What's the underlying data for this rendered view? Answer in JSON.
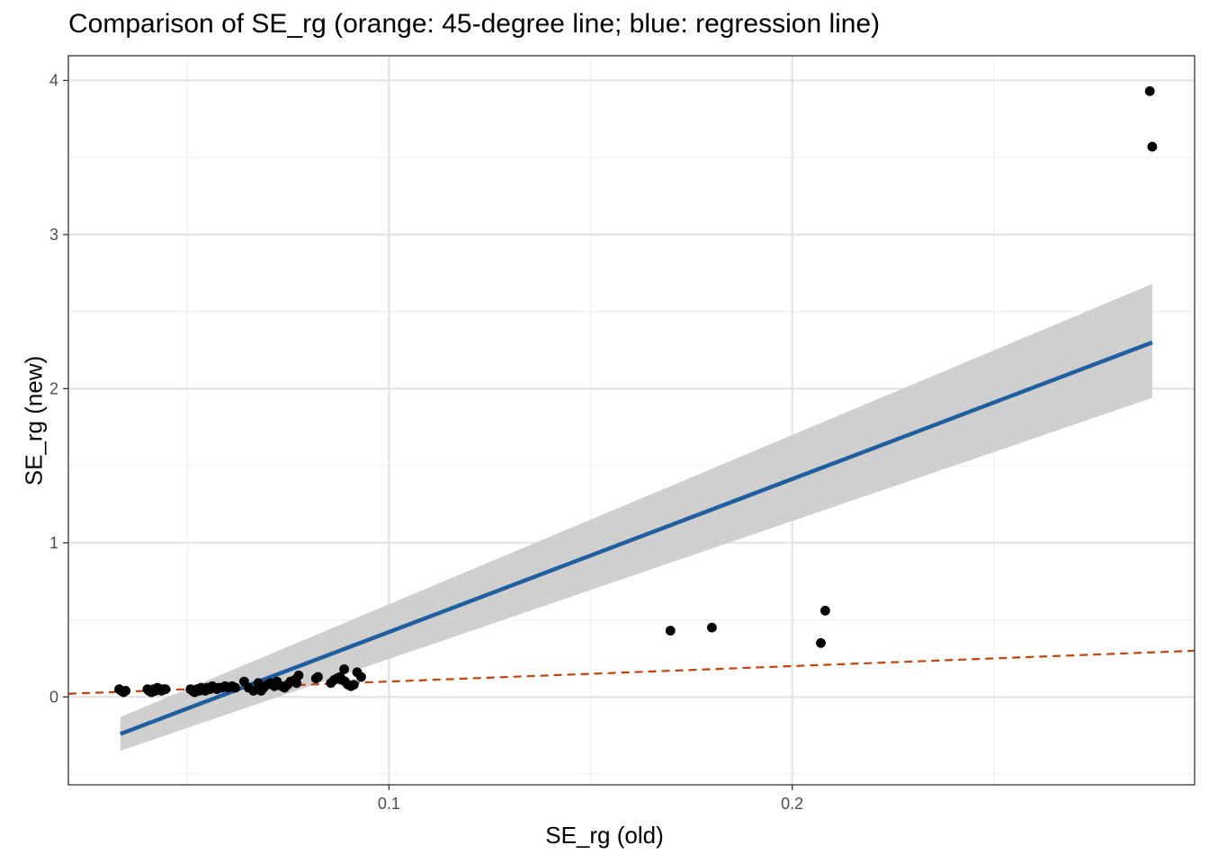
{
  "chart_data": {
    "type": "scatter",
    "title": "Comparison of SE_rg (orange: 45-degree line; blue: regression line)",
    "xlabel": "SE_rg (old)",
    "ylabel": "SE_rg (new)",
    "xlim": [
      0.0205,
      0.2998
    ],
    "ylim": [
      -0.57,
      4.16
    ],
    "x_ticks": [
      {
        "value": 0.1,
        "label": "0.1"
      },
      {
        "value": 0.2,
        "label": "0.2"
      }
    ],
    "x_minor_ticks": [
      0.05,
      0.15,
      0.25
    ],
    "y_ticks": [
      {
        "value": 0,
        "label": "0"
      },
      {
        "value": 1,
        "label": "1"
      },
      {
        "value": 2,
        "label": "2"
      },
      {
        "value": 3,
        "label": "3"
      },
      {
        "value": 4,
        "label": "4"
      }
    ],
    "y_minor_ticks": [
      -0.5,
      0.5,
      1.5,
      2.5,
      3.5
    ],
    "grid": true,
    "colors": {
      "points": "#000000",
      "regression_line": "#1f5f9f",
      "confidence_band": "#cccccc",
      "identity_line": "#c2410c"
    },
    "series": [
      {
        "type": "scatter",
        "points": [
          [
            0.0331,
            0.05
          ],
          [
            0.0336,
            0.04
          ],
          [
            0.0342,
            0.03
          ],
          [
            0.0347,
            0.04
          ],
          [
            0.0401,
            0.05
          ],
          [
            0.0405,
            0.04
          ],
          [
            0.0411,
            0.03
          ],
          [
            0.0416,
            0.05
          ],
          [
            0.0421,
            0.04
          ],
          [
            0.0426,
            0.06
          ],
          [
            0.0431,
            0.05
          ],
          [
            0.0436,
            0.04
          ],
          [
            0.0441,
            0.05
          ],
          [
            0.0446,
            0.05
          ],
          [
            0.0508,
            0.05
          ],
          [
            0.0513,
            0.04
          ],
          [
            0.0518,
            0.03
          ],
          [
            0.0524,
            0.05
          ],
          [
            0.0529,
            0.04
          ],
          [
            0.0534,
            0.06
          ],
          [
            0.0539,
            0.05
          ],
          [
            0.0544,
            0.04
          ],
          [
            0.0549,
            0.06
          ],
          [
            0.0556,
            0.05
          ],
          [
            0.0562,
            0.07
          ],
          [
            0.0568,
            0.06
          ],
          [
            0.0573,
            0.05
          ],
          [
            0.0579,
            0.06
          ],
          [
            0.0586,
            0.06
          ],
          [
            0.0594,
            0.07
          ],
          [
            0.0602,
            0.06
          ],
          [
            0.0611,
            0.07
          ],
          [
            0.0619,
            0.06
          ],
          [
            0.0641,
            0.1
          ],
          [
            0.0652,
            0.06
          ],
          [
            0.0664,
            0.04
          ],
          [
            0.0676,
            0.09
          ],
          [
            0.0683,
            0.04
          ],
          [
            0.0689,
            0.06
          ],
          [
            0.0699,
            0.08
          ],
          [
            0.0706,
            0.09
          ],
          [
            0.0716,
            0.07
          ],
          [
            0.0722,
            0.1
          ],
          [
            0.0734,
            0.07
          ],
          [
            0.0741,
            0.06
          ],
          [
            0.0749,
            0.08
          ],
          [
            0.0756,
            0.1
          ],
          [
            0.0766,
            0.11
          ],
          [
            0.0771,
            0.09
          ],
          [
            0.0776,
            0.14
          ],
          [
            0.0819,
            0.12
          ],
          [
            0.0824,
            0.13
          ],
          [
            0.0856,
            0.09
          ],
          [
            0.0864,
            0.11
          ],
          [
            0.0871,
            0.12
          ],
          [
            0.0879,
            0.13
          ],
          [
            0.0884,
            0.11
          ],
          [
            0.0889,
            0.18
          ],
          [
            0.0891,
            0.1
          ],
          [
            0.0898,
            0.08
          ],
          [
            0.0906,
            0.07
          ],
          [
            0.0913,
            0.08
          ],
          [
            0.0921,
            0.16
          ],
          [
            0.0931,
            0.13
          ],
          [
            0.1698,
            0.43
          ],
          [
            0.1801,
            0.45
          ],
          [
            0.2071,
            0.35
          ],
          [
            0.2082,
            0.56
          ],
          [
            0.2887,
            3.93
          ],
          [
            0.2893,
            3.57
          ]
        ]
      },
      {
        "type": "line",
        "name": "regression",
        "x": [
          0.0334,
          0.2893
        ],
        "y": [
          -0.24,
          2.3
        ],
        "band_upper": [
          -0.13,
          2.68
        ],
        "band_lower": [
          -0.35,
          1.94
        ]
      },
      {
        "type": "line",
        "name": "45-degree",
        "style": "dashed",
        "x": [
          0.0205,
          0.2998
        ],
        "y": [
          0.0205,
          0.2998
        ]
      }
    ]
  }
}
